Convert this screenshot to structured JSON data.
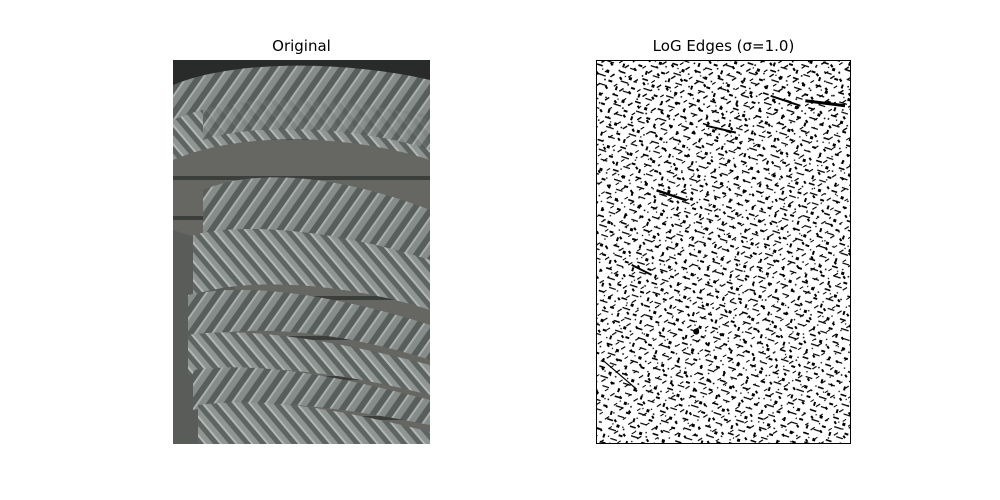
{
  "figure": {
    "panels": [
      {
        "title": "Original",
        "image": "rope-coil-photo"
      },
      {
        "title": "LoG Edges (σ=1.0)",
        "image": "log-edge-map"
      }
    ]
  }
}
